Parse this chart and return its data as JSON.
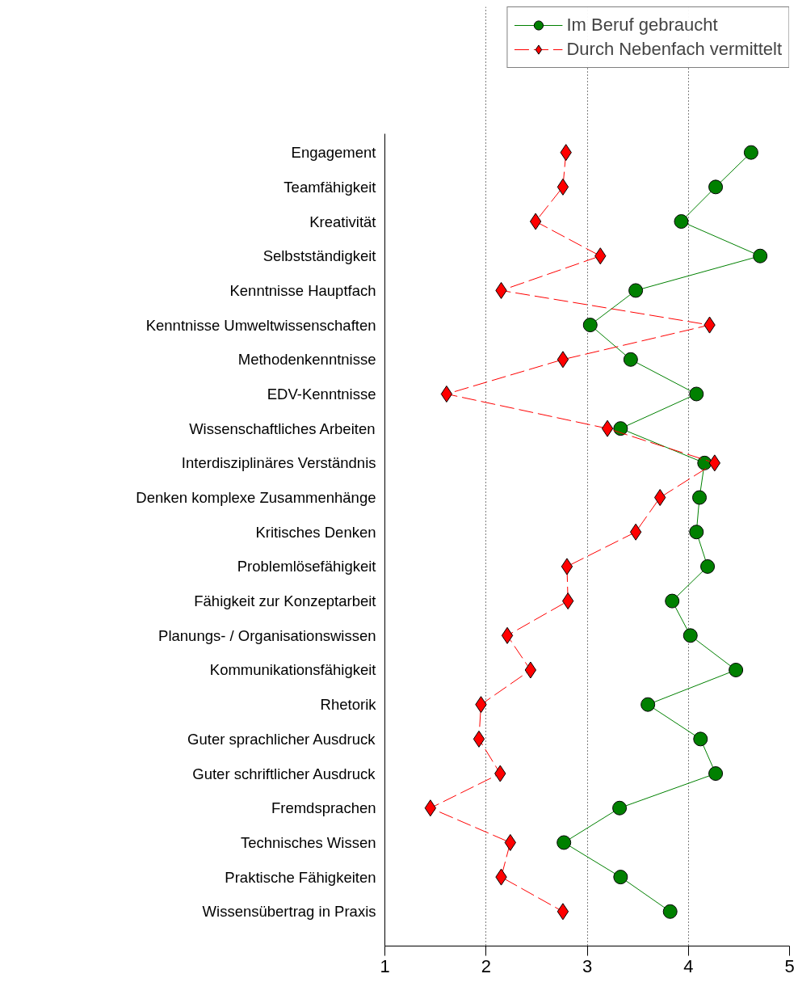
{
  "chart_data": {
    "type": "line",
    "orientation": "horizontal",
    "categories": [
      "Engagement",
      "Teamfähigkeit",
      "Kreativität",
      "Selbstständigkeit",
      "Kenntnisse Hauptfach",
      "Kenntnisse Umweltwissenschaften",
      "Methodenkenntnisse",
      "EDV-Kenntnisse",
      "Wissenschaftliches Arbeiten",
      "Interdisziplinäres Verständnis",
      "Denken komplexe Zusammenhänge",
      "Kritisches Denken",
      "Problemlösefähigkeit",
      "Fähigkeit zur Konzeptarbeit",
      "Planungs- / Organisationswissen",
      "Kommunikationsfähigkeit",
      "Rhetorik",
      "Guter sprachlicher Ausdruck",
      "Guter schriftlicher Ausdruck",
      "Fremdsprachen",
      "Technisches Wissen",
      "Praktische Fähigkeiten",
      "Wissensübertrag in Praxis"
    ],
    "series": [
      {
        "name": "Im Beruf gebraucht",
        "color": "#008000",
        "marker": "circle",
        "line_style": "solid",
        "values": [
          4.62,
          4.27,
          3.93,
          4.71,
          3.48,
          3.03,
          3.43,
          4.08,
          3.33,
          4.16,
          4.11,
          4.08,
          4.19,
          3.84,
          4.02,
          4.47,
          3.6,
          4.12,
          4.27,
          3.32,
          2.77,
          3.33,
          3.82
        ]
      },
      {
        "name": "Durch Nebenfach vermittelt",
        "color": "#ff0000",
        "marker": "diamond",
        "line_style": "dashed",
        "values": [
          2.79,
          2.76,
          2.49,
          3.13,
          2.15,
          4.21,
          2.76,
          1.61,
          3.2,
          4.26,
          3.72,
          3.48,
          2.8,
          2.81,
          2.21,
          2.44,
          1.95,
          1.93,
          2.14,
          1.45,
          2.24,
          2.15,
          2.76
        ]
      }
    ],
    "xlim": [
      1,
      5
    ],
    "xticks": [
      1,
      2,
      3,
      4,
      5
    ],
    "grid": "x",
    "legend": "top right"
  }
}
